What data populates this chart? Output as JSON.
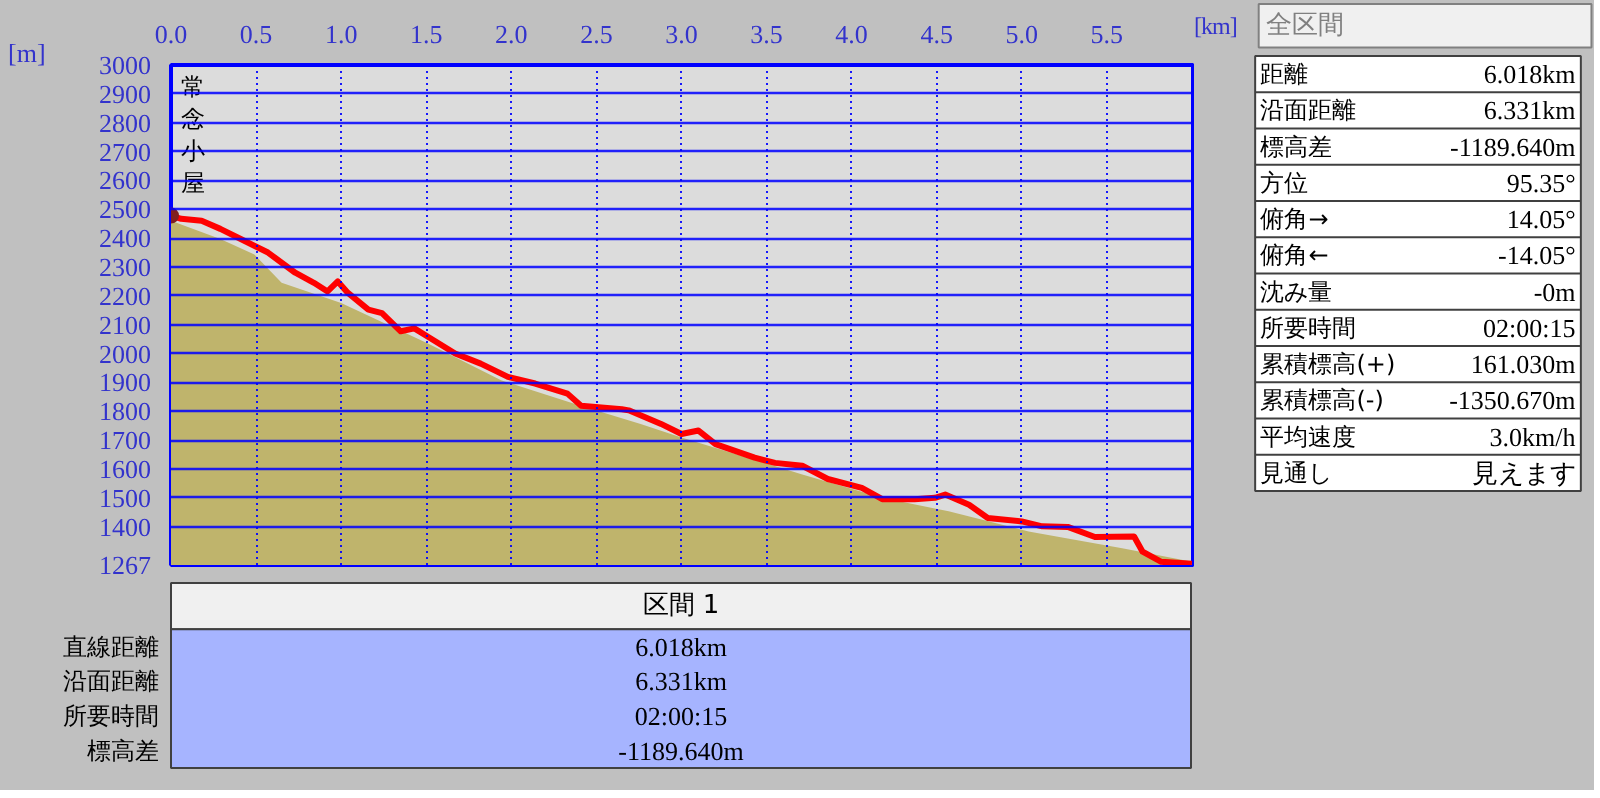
{
  "chart_data": [
    {
      "type": "line",
      "xlabel": "[km]",
      "ylabel": "[m]",
      "xlim": [
        0,
        6.018
      ],
      "ylim": [
        1267,
        3000
      ],
      "xticks": [
        {
          "value": 0,
          "label": "0.0"
        },
        0.5,
        {
          "value": 1,
          "label": "1.0"
        },
        1.5,
        {
          "value": 2,
          "label": "2.0"
        },
        2.5,
        {
          "value": 3,
          "label": "3.0"
        },
        3.5,
        {
          "value": 4,
          "label": "4.0"
        },
        4.5,
        {
          "value": 5,
          "label": "5.0"
        },
        5.5
      ],
      "yticks": [
        1267,
        1400,
        1500,
        1600,
        1700,
        1800,
        1900,
        2000,
        2100,
        2200,
        2300,
        2400,
        2500,
        2600,
        2700,
        2800,
        2900,
        3000
      ],
      "grid": true,
      "annotations": [
        {
          "text": "常念小屋",
          "x": 0,
          "y": 2478
        }
      ],
      "series": [
        {
          "type": "area",
          "color": "#bfb46c",
          "x": [
            0,
            0.29,
            0.49,
            0.65,
            1.0,
            1.51,
            1.94,
            2.37,
            2.76,
            3.0,
            3.71,
            4.18,
            4.57,
            5.04,
            5.59,
            6.0
          ],
          "values": [
            2460,
            2397,
            2343,
            2245,
            2175,
            2035,
            1907,
            1826,
            1756,
            1709,
            1581,
            1500,
            1453,
            1383,
            1325,
            1278
          ]
        },
        {
          "type": "line",
          "color": "#ff0000",
          "x": [
            0,
            0.06,
            0.18,
            0.29,
            0.41,
            0.57,
            0.73,
            0.84,
            0.92,
            0.98,
            1.04,
            1.16,
            1.24,
            1.35,
            1.43,
            1.51,
            1.67,
            1.82,
            1.98,
            2.14,
            2.33,
            2.41,
            2.65,
            2.69,
            2.88,
            3.0,
            3.1,
            3.2,
            3.43,
            3.55,
            3.71,
            3.86,
            4.06,
            4.18,
            4.37,
            4.49,
            4.55,
            4.69,
            4.8,
            5.0,
            5.12,
            5.27,
            5.43,
            5.66,
            5.71,
            5.82,
            6.0
          ],
          "values": [
            2478,
            2467,
            2460,
            2432,
            2397,
            2350,
            2280,
            2245,
            2215,
            2250,
            2210,
            2152,
            2140,
            2077,
            2087,
            2058,
            2000,
            1965,
            1919,
            1896,
            1861,
            1819,
            1807,
            1803,
            1756,
            1721,
            1733,
            1686,
            1639,
            1621,
            1611,
            1565,
            1534,
            1495,
            1495,
            1500,
            1511,
            1476,
            1430,
            1418,
            1401,
            1399,
            1364,
            1366,
            1313,
            1278,
            1271
          ]
        }
      ]
    },
    {
      "type": "other",
      "title": "全区間",
      "annotations": [
        "距離",
        "6.018km",
        "沿面距離",
        "6.331km",
        "標高差",
        "-1189.640m",
        "方位",
        "95.35°",
        "俯角→",
        "14.05°",
        "俯角←",
        "-14.05°",
        "沈み量",
        "-0m",
        "所要時間",
        "02:00:15",
        "累積標高(+)",
        "161.030m",
        "累積標高(-)",
        "-1350.670m",
        "平均速度",
        "3.0km/h",
        "見通し",
        "見えます"
      ]
    },
    {
      "type": "other",
      "title": "区間 1",
      "annotations": [
        "直線距離",
        "6.018km",
        "沿面距離",
        "6.331km",
        "所要時間",
        "02:00:15",
        "標高差",
        "-1189.640m"
      ]
    }
  ]
}
